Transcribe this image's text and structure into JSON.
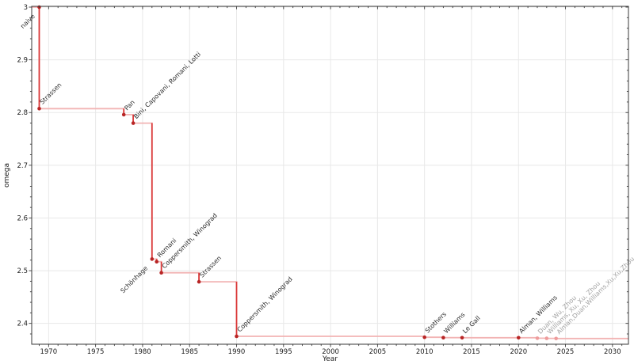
{
  "chart_data": {
    "type": "line",
    "title": "",
    "xlabel": "Year",
    "ylabel": "omega",
    "xlim": [
      1968.2,
      2031.7
    ],
    "ylim": [
      2.3605,
      3.0015
    ],
    "x_major_ticks": [
      1970,
      1975,
      1980,
      1985,
      1990,
      1995,
      2000,
      2005,
      2010,
      2015,
      2020,
      2025,
      2030
    ],
    "x_minor_step_years": 1,
    "y_major_ticks": [
      2.4,
      2.5,
      2.6,
      2.7,
      2.8,
      2.9,
      3
    ],
    "y_tick_labels": [
      "2.4",
      "2.5",
      "2.6",
      "2.7",
      "2.8",
      "2.9",
      "3"
    ],
    "y_minor_step": 0.02,
    "grid": "major",
    "legend": "none",
    "drawstyle": "steps-post",
    "colors": {
      "step_line": "#f2b4b4",
      "drop_line": "#d93434",
      "marker": "#b82525",
      "muted_marker": "#ee9c9c",
      "label": "#2b2b2b",
      "muted_label": "#a3a3a3",
      "grid": "#e8e8e8",
      "spine": "#3a3a3a",
      "tick": "#3a3a3a"
    },
    "points": [
      {
        "year": 1969,
        "omega": 3.0,
        "label": "naive",
        "label_side": "below",
        "muted": false
      },
      {
        "year": 1969,
        "omega": 2.8074,
        "label": "Strassen",
        "label_side": "above",
        "muted": false
      },
      {
        "year": 1978,
        "omega": 2.796,
        "label": "Pan",
        "label_side": "above",
        "muted": false
      },
      {
        "year": 1979,
        "omega": 2.78,
        "label": "Bini, Capovani, Romani, Lotti",
        "label_side": "above",
        "muted": false
      },
      {
        "year": 1981,
        "omega": 2.522,
        "label": "Schönhage",
        "label_side": "below",
        "muted": false
      },
      {
        "year": 1981.5,
        "omega": 2.517,
        "label": "Romani",
        "label_side": "above",
        "muted": false
      },
      {
        "year": 1982,
        "omega": 2.496,
        "label": "Coppersmith, Winograd",
        "label_side": "above",
        "muted": false
      },
      {
        "year": 1986,
        "omega": 2.479,
        "label": "Strassen",
        "label_side": "above",
        "muted": false
      },
      {
        "year": 1990,
        "omega": 2.3755,
        "label": "Coppersmith, Winograd",
        "label_side": "above",
        "muted": false
      },
      {
        "year": 2010,
        "omega": 2.3737,
        "label": "Stothers",
        "label_side": "above",
        "muted": false
      },
      {
        "year": 2012,
        "omega": 2.3729,
        "label": "Williams",
        "label_side": "above",
        "muted": false
      },
      {
        "year": 2014,
        "omega": 2.3728639,
        "label": "Le Gall",
        "label_side": "above",
        "muted": false
      },
      {
        "year": 2020,
        "omega": 2.3728596,
        "label": "Alman, Williams",
        "label_side": "above",
        "muted": false
      },
      {
        "year": 2022,
        "omega": 2.371866,
        "label": "Duan, Wu, Zhou",
        "label_side": "above",
        "muted": true
      },
      {
        "year": 2023,
        "omega": 2.371552,
        "label": "Williams, Xu, Xu, Zhou",
        "label_side": "above",
        "muted": true
      },
      {
        "year": 2024,
        "omega": 2.371339,
        "label": "Alman,Duan,Williams,Xu,Xu,Zhou",
        "label_side": "above",
        "muted": true
      }
    ]
  }
}
